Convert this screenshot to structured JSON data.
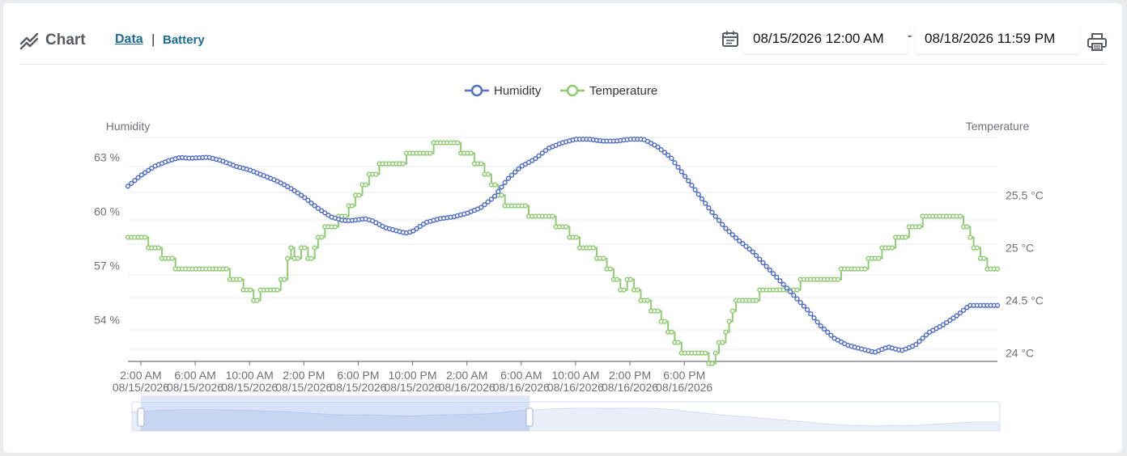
{
  "header": {
    "title": "Chart",
    "tabs": [
      {
        "label": "Data",
        "active": true
      },
      {
        "label": "Battery",
        "active": false
      }
    ],
    "separator": "|",
    "date_start": "08/15/2026 12:00 AM",
    "date_range_separator": "-",
    "date_end": "08/18/2026 11:59 PM",
    "icons": {
      "title": "line-chart-icon",
      "calendar": "calendar-icon",
      "print": "print-icon"
    }
  },
  "colors": {
    "humidity": "#5470c6",
    "temperature": "#91cc75",
    "accent": "#1a6a9a"
  },
  "chart_data": {
    "type": "line",
    "legend": [
      "Humidity",
      "Temperature"
    ],
    "legend_position": "top-center",
    "y_left_label": "Humidity",
    "y_right_label": "Temperature",
    "x_ticks": [
      [
        "2:00 AM",
        "08/15/2026"
      ],
      [
        "6:00 AM",
        "08/15/2026"
      ],
      [
        "10:00 AM",
        "08/15/2026"
      ],
      [
        "2:00 PM",
        "08/15/2026"
      ],
      [
        "6:00 PM",
        "08/15/2026"
      ],
      [
        "10:00 PM",
        "08/15/2026"
      ],
      [
        "2:00 AM",
        "08/16/2026"
      ],
      [
        "6:00 AM",
        "08/16/2026"
      ],
      [
        "10:00 AM",
        "08/16/2026"
      ],
      [
        "2:00 PM",
        "08/16/2026"
      ],
      [
        "6:00 PM",
        "08/16/2026"
      ]
    ],
    "x_tick_hours": [
      2,
      6,
      10,
      14,
      18,
      22,
      26,
      30,
      34,
      38,
      42
    ],
    "x_range_hours": [
      1.05,
      44.25
    ],
    "y_left": {
      "min": 51.7,
      "max": 64.1,
      "ticks": [
        54,
        57,
        60,
        63
      ],
      "tick_labels": [
        "54 %",
        "57 %",
        "60 %",
        "63 %"
      ]
    },
    "y_right": {
      "min": 23.92,
      "max": 26.05,
      "ticks": [
        24,
        24.5,
        25,
        25.5
      ],
      "tick_labels": [
        "24 °C",
        "24.5 °C",
        "25 °C",
        "25.5 °C"
      ]
    },
    "grid": true,
    "series": [
      {
        "name": "Humidity",
        "unit": "%",
        "points": [
          [
            1.05,
            61.4
          ],
          [
            2,
            62.0
          ],
          [
            3,
            62.5
          ],
          [
            4,
            62.8
          ],
          [
            4.9,
            63.0
          ],
          [
            5.5,
            62.95
          ],
          [
            7,
            63.0
          ],
          [
            8,
            62.8
          ],
          [
            9,
            62.5
          ],
          [
            10,
            62.3
          ],
          [
            11,
            62.0
          ],
          [
            12,
            61.7
          ],
          [
            13,
            61.3
          ],
          [
            14,
            60.8
          ],
          [
            15,
            60.2
          ],
          [
            16,
            59.7
          ],
          [
            16.9,
            59.5
          ],
          [
            17.5,
            59.5
          ],
          [
            18.5,
            59.6
          ],
          [
            19,
            59.5
          ],
          [
            20,
            59.1
          ],
          [
            21.5,
            58.8
          ],
          [
            22,
            58.9
          ],
          [
            23,
            59.4
          ],
          [
            24,
            59.6
          ],
          [
            25,
            59.7
          ],
          [
            26,
            59.9
          ],
          [
            27,
            60.2
          ],
          [
            28,
            60.8
          ],
          [
            29,
            61.8
          ],
          [
            30,
            62.5
          ],
          [
            31,
            62.9
          ],
          [
            32,
            63.5
          ],
          [
            33,
            63.8
          ],
          [
            34,
            64.0
          ],
          [
            35,
            64.0
          ],
          [
            36,
            63.9
          ],
          [
            37,
            63.9
          ],
          [
            38,
            64.0
          ],
          [
            39,
            64.0
          ],
          [
            40,
            63.6
          ],
          [
            41,
            63.0
          ],
          [
            42,
            62.0
          ],
          [
            43,
            61.0
          ],
          [
            44,
            60.0
          ],
          [
            45,
            59.1
          ],
          [
            46,
            58.4
          ],
          [
            47,
            57.8
          ],
          [
            48,
            57.0
          ],
          [
            49,
            56.2
          ],
          [
            50,
            55.4
          ],
          [
            51,
            54.6
          ],
          [
            52,
            53.7
          ],
          [
            53,
            53.0
          ],
          [
            54,
            52.6
          ],
          [
            55,
            52.4
          ],
          [
            56,
            52.2
          ],
          [
            57,
            52.5
          ],
          [
            58,
            52.3
          ],
          [
            59,
            52.6
          ],
          [
            60,
            53.3
          ],
          [
            61,
            53.7
          ],
          [
            62,
            54.2
          ],
          [
            63,
            54.8
          ]
        ]
      },
      {
        "name": "Temperature",
        "unit": "°C",
        "points": [
          [
            1.05,
            25.1
          ],
          [
            2,
            25.1
          ],
          [
            3,
            25.0
          ],
          [
            4,
            24.9
          ],
          [
            5,
            24.8
          ],
          [
            6,
            24.8
          ],
          [
            7,
            24.8
          ],
          [
            8,
            24.8
          ],
          [
            9,
            24.7
          ],
          [
            10,
            24.6
          ],
          [
            10.5,
            24.5
          ],
          [
            11,
            24.6
          ],
          [
            12,
            24.6
          ],
          [
            12.5,
            24.7
          ],
          [
            13,
            25.0
          ],
          [
            13.5,
            24.9
          ],
          [
            14,
            25.0
          ],
          [
            14.5,
            24.9
          ],
          [
            15,
            25.1
          ],
          [
            16,
            25.2
          ],
          [
            17,
            25.3
          ],
          [
            17.5,
            25.4
          ],
          [
            18,
            25.5
          ],
          [
            18.5,
            25.6
          ],
          [
            19,
            25.7
          ],
          [
            20,
            25.8
          ],
          [
            21,
            25.8
          ],
          [
            22,
            25.9
          ],
          [
            23,
            25.9
          ],
          [
            24,
            26.0
          ],
          [
            25,
            26.0
          ],
          [
            26,
            25.9
          ],
          [
            27,
            25.8
          ],
          [
            27.5,
            25.7
          ],
          [
            28,
            25.6
          ],
          [
            28.5,
            25.5
          ],
          [
            29,
            25.4
          ],
          [
            30,
            25.4
          ],
          [
            31,
            25.3
          ],
          [
            32,
            25.3
          ],
          [
            33,
            25.2
          ],
          [
            34,
            25.1
          ],
          [
            34.5,
            25.0
          ],
          [
            35,
            25.0
          ],
          [
            36,
            24.9
          ],
          [
            36.5,
            24.8
          ],
          [
            37,
            24.7
          ],
          [
            37.5,
            24.6
          ],
          [
            38,
            24.7
          ],
          [
            38.5,
            24.6
          ],
          [
            39,
            24.5
          ],
          [
            40,
            24.4
          ],
          [
            40.5,
            24.3
          ],
          [
            41,
            24.2
          ],
          [
            41.5,
            24.1
          ],
          [
            42,
            24.0
          ],
          [
            43,
            24.0
          ],
          [
            44,
            23.92
          ],
          [
            44.3,
            24.0
          ],
          [
            45,
            24.2
          ],
          [
            45.5,
            24.4
          ],
          [
            46,
            24.5
          ],
          [
            47,
            24.5
          ],
          [
            48,
            24.6
          ],
          [
            49,
            24.6
          ],
          [
            50,
            24.6
          ],
          [
            51,
            24.7
          ],
          [
            52,
            24.7
          ],
          [
            53,
            24.7
          ],
          [
            54,
            24.8
          ],
          [
            55,
            24.8
          ],
          [
            56,
            24.9
          ],
          [
            57,
            25.0
          ],
          [
            58,
            25.1
          ],
          [
            59,
            25.2
          ],
          [
            60,
            25.3
          ],
          [
            61,
            25.3
          ],
          [
            62,
            25.3
          ],
          [
            62.7,
            25.2
          ],
          [
            63,
            25.1
          ],
          [
            63.5,
            25.0
          ],
          [
            64,
            24.9
          ],
          [
            64.5,
            24.8
          ],
          [
            65,
            24.8
          ]
        ]
      }
    ],
    "zoom": {
      "start_percent": 0,
      "end_percent": 42
    }
  }
}
